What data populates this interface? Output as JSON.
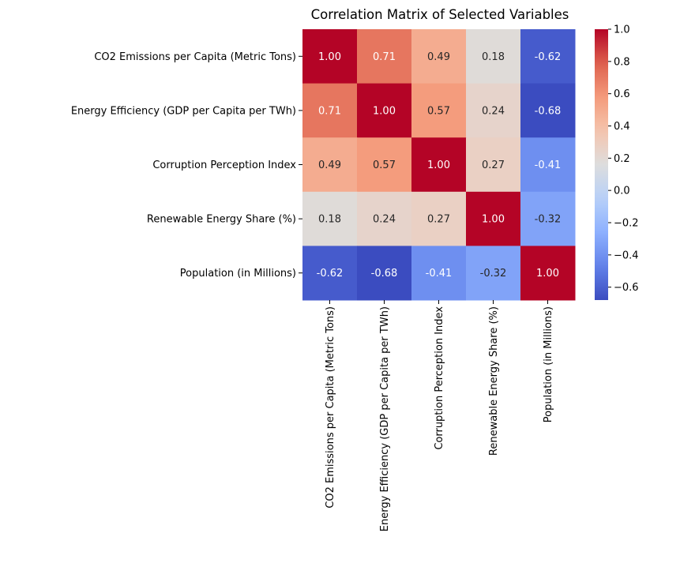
{
  "chart_data": {
    "type": "heatmap",
    "title": "Correlation Matrix of Selected Variables",
    "xlabel": "",
    "ylabel": "",
    "row_labels": [
      "CO2 Emissions per Capita (Metric Tons)",
      "Energy Efficiency (GDP per Capita per TWh)",
      "Corruption Perception Index",
      "Renewable Energy Share (%)",
      "Population (in Millions)"
    ],
    "col_labels": [
      "CO2 Emissions per Capita (Metric Tons)",
      "Energy Efficiency (GDP per Capita per TWh)",
      "Corruption Perception Index",
      "Renewable Energy Share (%)",
      "Population (in Millions)"
    ],
    "values": [
      [
        1.0,
        0.71,
        0.49,
        0.18,
        -0.62
      ],
      [
        0.71,
        1.0,
        0.57,
        0.24,
        -0.68
      ],
      [
        0.49,
        0.57,
        1.0,
        0.27,
        -0.41
      ],
      [
        0.18,
        0.24,
        0.27,
        1.0,
        -0.32
      ],
      [
        -0.62,
        -0.68,
        -0.41,
        -0.32,
        1.0
      ]
    ],
    "cell_text": [
      [
        "1.00",
        "0.71",
        "0.49",
        "0.18",
        "-0.62"
      ],
      [
        "0.71",
        "1.00",
        "0.57",
        "0.24",
        "-0.68"
      ],
      [
        "0.49",
        "0.57",
        "1.00",
        "0.27",
        "-0.41"
      ],
      [
        "0.18",
        "0.24",
        "0.27",
        "1.00",
        "-0.32"
      ],
      [
        "-0.62",
        "-0.68",
        "-0.41",
        "-0.32",
        "1.00"
      ]
    ],
    "colormap": "coolwarm",
    "vmin": -0.68,
    "vmax": 1.0,
    "colorbar": {
      "ticks": [
        1.0,
        0.8,
        0.6,
        0.4,
        0.2,
        0.0,
        -0.2,
        -0.4,
        -0.6
      ],
      "tick_labels": [
        "1.0",
        "0.8",
        "0.6",
        "0.4",
        "0.2",
        "0.0",
        "−0.2",
        "−0.4",
        "−0.6"
      ],
      "placement": "right"
    },
    "grid": false
  }
}
